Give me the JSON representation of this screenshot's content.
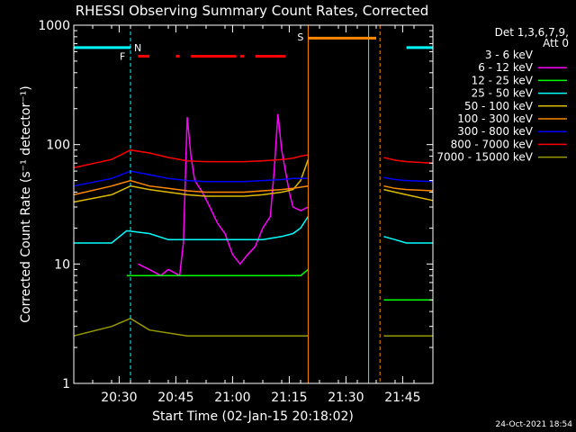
{
  "chart_data": {
    "type": "line",
    "title": "RHESSI Observing Summary Count Rates, Corrected",
    "xlabel": "Start Time (02-Jan-15 20:18:02)",
    "ylabel": "Corrected Count Rate (s⁻¹ detector⁻¹)",
    "y_scale": "log",
    "ylim": [
      1,
      1000
    ],
    "xlim_minutes": [
      0,
      95
    ],
    "x_ticks": [
      "20:30",
      "20:45",
      "21:00",
      "21:15",
      "21:30",
      "21:45"
    ],
    "x_tick_minutes": [
      12,
      27,
      42,
      57,
      72,
      87
    ],
    "y_ticks": [
      "1",
      "10",
      "100",
      "1000"
    ],
    "y_tick_values": [
      1,
      10,
      100,
      1000
    ],
    "legend_header": [
      "Det 1,3,6,7,9,",
      "Att 0"
    ],
    "legend_location": "right",
    "timestamp": "24-Oct-2021 18:54",
    "data_gap": [
      62,
      80
    ],
    "series": [
      {
        "name": "3 - 6 keV",
        "color": "#000000",
        "x": [
          17,
          20,
          23,
          25,
          28,
          30,
          33,
          36,
          38,
          41,
          44,
          47,
          50,
          53,
          56,
          58,
          61
        ],
        "y": [
          10,
          9,
          8,
          9,
          8,
          10,
          12,
          14,
          20,
          16,
          12,
          13,
          14,
          18,
          20,
          28,
          40
        ]
      },
      {
        "name": "6 - 12 keV",
        "color": "#ff00ff",
        "x": [
          17,
          20,
          23,
          25,
          28,
          29,
          30,
          31,
          32,
          34,
          36,
          38,
          40,
          42,
          44,
          46,
          48,
          50,
          52,
          53,
          54,
          55,
          56,
          57,
          58,
          60,
          62
        ],
        "y": [
          10,
          9,
          8,
          9,
          8,
          15,
          170,
          80,
          50,
          40,
          30,
          22,
          18,
          12,
          10,
          12,
          14,
          20,
          25,
          60,
          180,
          90,
          60,
          40,
          30,
          28,
          30
        ]
      },
      {
        "name": "12 - 25 keV",
        "color": "#00ff00",
        "x": [
          14,
          20,
          30,
          40,
          50,
          60,
          62,
          82,
          95
        ],
        "y": [
          8,
          8,
          8,
          8,
          8,
          8,
          9,
          5,
          5
        ]
      },
      {
        "name": "25 - 50 keV",
        "color": "#00ffff",
        "x": [
          0,
          10,
          14,
          20,
          25,
          30,
          35,
          40,
          45,
          50,
          55,
          58,
          60,
          62,
          82,
          85,
          88,
          95
        ],
        "y": [
          15,
          15,
          19,
          18,
          16,
          16,
          16,
          16,
          16,
          16,
          17,
          18,
          20,
          25,
          17,
          16,
          15,
          15
        ]
      },
      {
        "name": "50 - 100 keV",
        "color": "#ddbb00",
        "x": [
          0,
          10,
          15,
          20,
          25,
          30,
          35,
          40,
          45,
          50,
          55,
          58,
          60,
          62,
          82,
          85,
          88,
          95
        ],
        "y": [
          33,
          38,
          45,
          42,
          40,
          38,
          37,
          37,
          37,
          38,
          40,
          42,
          50,
          75,
          42,
          40,
          38,
          34
        ]
      },
      {
        "name": "100 - 300 keV",
        "color": "#ff8800",
        "x": [
          0,
          10,
          15,
          20,
          25,
          30,
          35,
          40,
          45,
          50,
          55,
          58,
          60,
          62,
          82,
          85,
          88,
          95
        ],
        "y": [
          38,
          45,
          50,
          45,
          43,
          41,
          40,
          40,
          40,
          41,
          42,
          43,
          44,
          45,
          45,
          43,
          42,
          41
        ]
      },
      {
        "name": "300 - 800 keV",
        "color": "#0000ff",
        "x": [
          0,
          10,
          15,
          20,
          25,
          30,
          35,
          40,
          45,
          50,
          55,
          58,
          60,
          62,
          82,
          85,
          88,
          95
        ],
        "y": [
          45,
          52,
          60,
          56,
          52,
          50,
          49,
          49,
          49,
          50,
          51,
          52,
          52,
          52,
          53,
          51,
          50,
          49
        ]
      },
      {
        "name": "800 - 7000 keV",
        "color": "#ff0000",
        "x": [
          0,
          10,
          15,
          20,
          25,
          30,
          35,
          40,
          45,
          50,
          55,
          58,
          60,
          62,
          82,
          85,
          88,
          95
        ],
        "y": [
          64,
          75,
          90,
          85,
          78,
          73,
          72,
          72,
          72,
          73,
          75,
          77,
          80,
          82,
          78,
          74,
          72,
          70
        ]
      },
      {
        "name": "7000 - 15000 keV",
        "color": "#999900",
        "x": [
          0,
          10,
          15,
          20,
          30,
          40,
          50,
          60,
          62,
          82,
          95
        ],
        "y": [
          2.5,
          3,
          3.5,
          2.8,
          2.5,
          2.5,
          2.5,
          2.5,
          2.5,
          2.5,
          2.5
        ]
      }
    ],
    "annotations": [
      {
        "label": "N",
        "color": "#00ffff"
      },
      {
        "label": "F",
        "color": "#ff0000"
      },
      {
        "label": "S",
        "color": "#ff8800"
      }
    ]
  }
}
